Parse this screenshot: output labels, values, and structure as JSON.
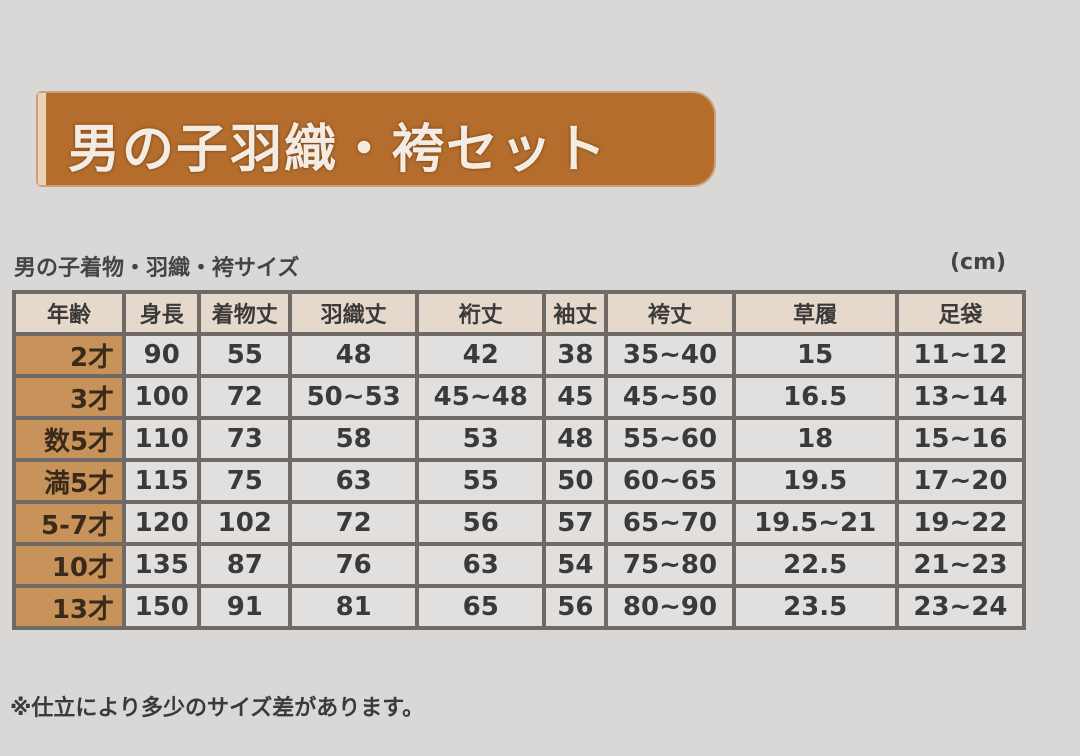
{
  "title": "男の子羽織・袴セット",
  "subtitle": "男の子着物・羽織・袴サイズ",
  "unit": "(cm)",
  "colors": {
    "banner": "#b46d2c",
    "age_cell": "#c8935a",
    "header_cell": "#e4d9cc"
  },
  "table": {
    "headers": [
      "年齢",
      "身長",
      "着物丈",
      "羽織丈",
      "裄丈",
      "袖丈",
      "袴丈",
      "草履",
      "足袋"
    ],
    "rows": [
      [
        "2才",
        "90",
        "55",
        "48",
        "42",
        "38",
        "35~40",
        "15",
        "11~12"
      ],
      [
        "3才",
        "100",
        "72",
        "50~53",
        "45~48",
        "45",
        "45~50",
        "16.5",
        "13~14"
      ],
      [
        "数5才",
        "110",
        "73",
        "58",
        "53",
        "48",
        "55~60",
        "18",
        "15~16"
      ],
      [
        "満5才",
        "115",
        "75",
        "63",
        "55",
        "50",
        "60~65",
        "19.5",
        "17~20"
      ],
      [
        "5-7才",
        "120",
        "102",
        "72",
        "56",
        "57",
        "65~70",
        "19.5~21",
        "19~22"
      ],
      [
        "10才",
        "135",
        "87",
        "76",
        "63",
        "54",
        "75~80",
        "22.5",
        "21~23"
      ],
      [
        "13才",
        "150",
        "91",
        "81",
        "65",
        "56",
        "80~90",
        "23.5",
        "23~24"
      ]
    ]
  },
  "footer": "※仕立により多少のサイズ差があります。"
}
